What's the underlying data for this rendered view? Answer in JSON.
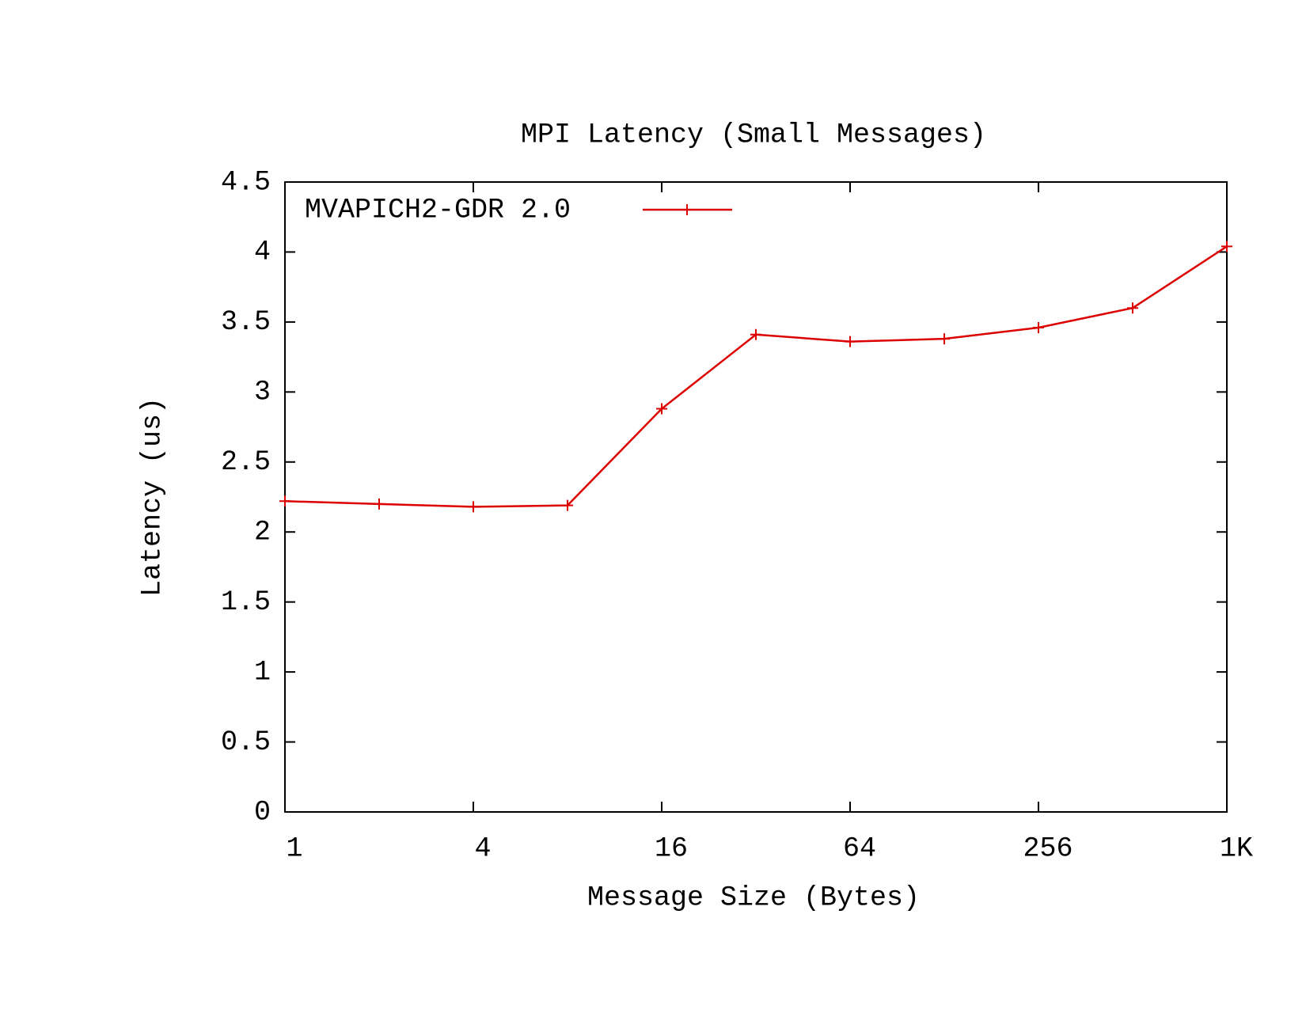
{
  "chart_data": {
    "type": "line",
    "title": "MPI Latency (Small Messages)",
    "x_label": "Message Size (Bytes)",
    "y_label": "Latency (us)",
    "x": [
      1,
      2,
      4,
      8,
      16,
      32,
      64,
      128,
      256,
      512,
      1024
    ],
    "series": [
      {
        "name": "MVAPICH2-GDR 2.0",
        "color": "#dd0000",
        "values": [
          2.22,
          2.2,
          2.18,
          2.19,
          2.88,
          3.41,
          3.36,
          3.38,
          3.46,
          3.6,
          4.04
        ]
      }
    ],
    "x_log_base": 2,
    "xlim": [
      1,
      1024
    ],
    "xticks": [
      1,
      4,
      16,
      64,
      256,
      {
        "value": 1024,
        "label": "1K"
      }
    ],
    "ylim": [
      0,
      4.5
    ],
    "yticks": [
      0,
      0.5,
      1,
      1.5,
      2,
      2.5,
      3,
      3.5,
      4,
      4.5
    ],
    "grid": false,
    "legend": "top-left"
  }
}
